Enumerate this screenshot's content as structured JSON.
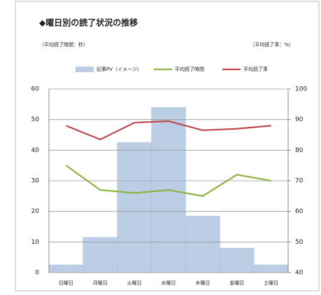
{
  "chart_data": {
    "type": "combo",
    "title": "◆曜日別の読了状況の推移",
    "y_label": "（平均読了時間：秒）",
    "y2_label": "（平均読了率：%）",
    "categories": [
      "日曜日",
      "月曜日",
      "火曜日",
      "水曜日",
      "木曜日",
      "金曜日",
      "土曜日"
    ],
    "series": [
      {
        "name": "記事PV（イメージ）",
        "type": "bar",
        "color": "#bccde6",
        "values": [
          2.5,
          11.5,
          42.5,
          54,
          18.5,
          8,
          2.5
        ]
      },
      {
        "name": "平均読了時間",
        "type": "line",
        "color": "#8db33e",
        "values": [
          35,
          27,
          26,
          27,
          25,
          32,
          30
        ]
      },
      {
        "name": "平均読了率",
        "type": "line",
        "color": "#c0474a",
        "axis": "y2",
        "values": [
          88,
          83.5,
          89,
          89.5,
          86.5,
          87,
          88
        ]
      }
    ],
    "ylim": [
      0,
      60
    ],
    "yticks": [
      0,
      10,
      20,
      30,
      40,
      50,
      60
    ],
    "y2lim": [
      40,
      100
    ],
    "y2ticks": [
      40,
      50,
      60,
      70,
      80,
      90,
      100
    ],
    "grid": true,
    "legend": "top"
  }
}
